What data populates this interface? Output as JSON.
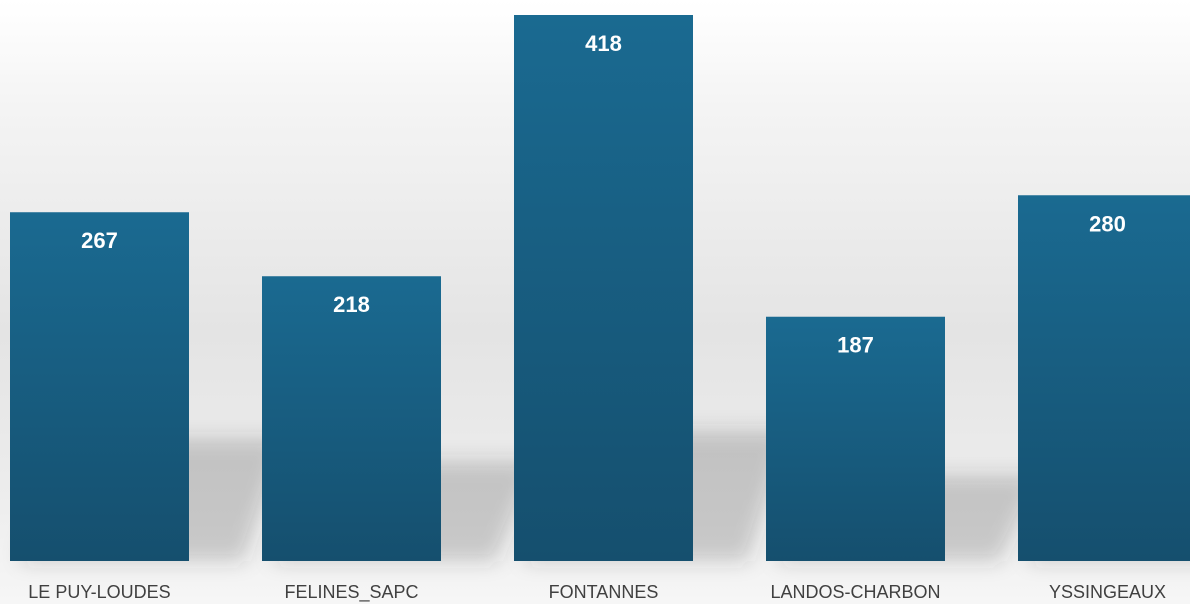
{
  "chart_data": {
    "type": "bar",
    "categories": [
      "LE PUY-LOUDES",
      "FELINES_SAPC",
      "FONTANNES",
      "LANDOS-CHARBON",
      "YSSINGEAUX"
    ],
    "values": [
      267,
      218,
      418,
      187,
      280
    ],
    "data_labels": [
      "267",
      "218",
      "418",
      "187",
      "280"
    ],
    "title": "",
    "xlabel": "",
    "ylabel": "",
    "ylim": [
      0,
      418
    ],
    "grid": false,
    "legend": "none",
    "colors": {
      "bar_top": "#1a6a91",
      "bar_bottom": "#154f6e",
      "label": "#ffffff",
      "axis_text": "#404040"
    }
  }
}
